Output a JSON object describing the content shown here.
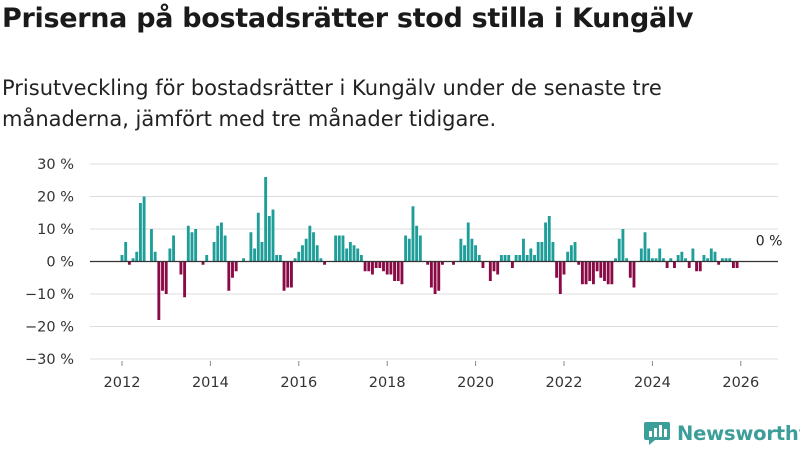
{
  "title": "Priserna på bostadsrätter stod stilla i Kungälv",
  "subtitle": "Prisutveckling för bostadsrätter i Kungälv under de senaste tre månaderna, jämfört med tre månader tidigare.",
  "brand": "Newsworthy",
  "colors": {
    "positive": "#1f9e99",
    "negative": "#8a0a45",
    "brand": "#3b9e99"
  },
  "chart_data": {
    "type": "bar",
    "title": "Priserna på bostadsrätter stod stilla i Kungälv",
    "xlabel": "",
    "ylabel": "",
    "ylim": [
      -30,
      30
    ],
    "y_ticks": [
      30,
      20,
      10,
      0,
      -10,
      -20,
      -30
    ],
    "y_tick_labels": [
      "30 %",
      "20 %",
      "10 %",
      "0 %",
      "−10 %",
      "−20 %",
      "−30 %"
    ],
    "x_ticks": [
      2012,
      2014,
      2016,
      2018,
      2020,
      2022,
      2024,
      2026
    ],
    "x_tick_labels": [
      "2012",
      "2014",
      "2016",
      "2018",
      "2020",
      "2022",
      "2024",
      "2026"
    ],
    "x_start": 2012.0,
    "x_step": 0.08333,
    "last_value_label": "0 %",
    "values": [
      2,
      6,
      -1,
      1,
      3,
      18,
      20,
      0,
      10,
      3,
      -18,
      -9,
      -10,
      4,
      8,
      0,
      -4,
      -11,
      11,
      9,
      10,
      0,
      -1,
      2,
      0,
      6,
      11,
      12,
      8,
      -9,
      -5,
      -3,
      0,
      1,
      0,
      9,
      4,
      15,
      6,
      26,
      14,
      16,
      2,
      2,
      -9,
      -8,
      -8,
      1,
      3,
      5,
      7,
      11,
      9,
      5,
      1,
      -1,
      0,
      0,
      8,
      8,
      8,
      4,
      6,
      5,
      4,
      2,
      -3,
      -3,
      -4,
      -2,
      -2,
      -3,
      -4,
      -4,
      -6,
      -6,
      -7,
      8,
      7,
      17,
      11,
      8,
      0,
      -1,
      -8,
      -10,
      -9,
      -1,
      0,
      0,
      -1,
      0,
      7,
      5,
      12,
      7,
      5,
      2,
      -2,
      0,
      -6,
      -3,
      -4,
      2,
      2,
      2,
      -2,
      2,
      2,
      7,
      2,
      4,
      2,
      6,
      6,
      12,
      14,
      6,
      -5,
      -10,
      -4,
      3,
      5,
      6,
      -1,
      -7,
      -7,
      -6,
      -7,
      -3,
      -5,
      -6,
      -7,
      -7,
      1,
      7,
      10,
      1,
      -5,
      -8,
      0,
      4,
      9,
      4,
      1,
      1,
      4,
      1,
      -2,
      1,
      -2,
      2,
      3,
      1,
      -2,
      4,
      -3,
      -3,
      2,
      1,
      4,
      3,
      -1,
      1,
      1,
      1,
      -2,
      -2,
      0
    ]
  }
}
